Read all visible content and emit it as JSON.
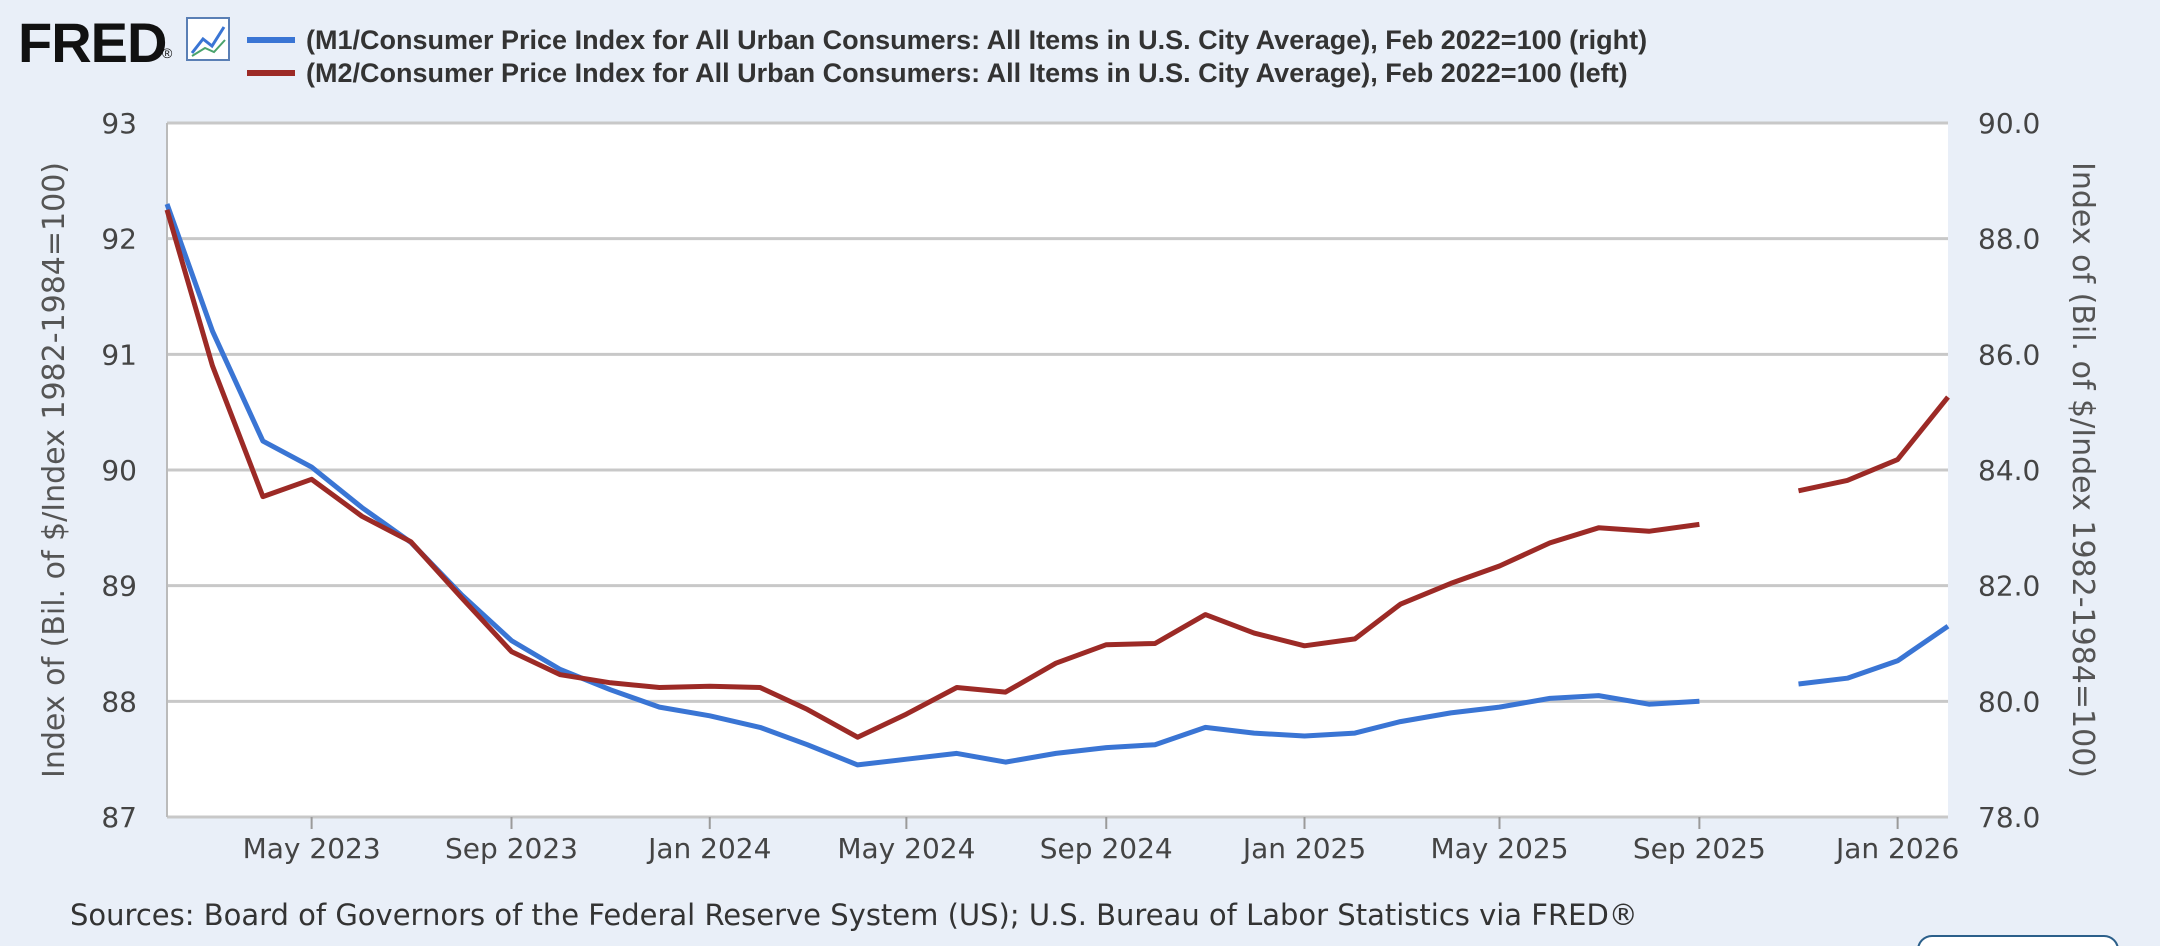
{
  "logo": {
    "text": "FRED",
    "registered": "®",
    "icon": "chart-line-icon"
  },
  "colors": {
    "m1": "#3a75d4",
    "m2": "#9c2a26",
    "grid": "#c8c8c8",
    "plot_bg": "#ffffff",
    "page_bg": "#e9eff8"
  },
  "source_text": "Sources: Board of Governors of the Federal Reserve System (US); U.S. Bureau of Labor Statistics via FRED®",
  "chart_data": {
    "type": "line",
    "x_axis": {
      "type": "date",
      "range": [
        "2023-02-01",
        "2026-02-01"
      ],
      "ticks": [
        {
          "date": "2023-05-01",
          "label": "May 2023"
        },
        {
          "date": "2023-09-01",
          "label": "Sep 2023"
        },
        {
          "date": "2024-01-01",
          "label": "Jan 2024"
        },
        {
          "date": "2024-05-01",
          "label": "May 2024"
        },
        {
          "date": "2024-09-01",
          "label": "Sep 2024"
        },
        {
          "date": "2025-01-01",
          "label": "Jan 2025"
        },
        {
          "date": "2025-05-01",
          "label": "May 2025"
        },
        {
          "date": "2025-09-01",
          "label": "Sep 2025"
        },
        {
          "date": "2026-01-01",
          "label": "Jan 2026"
        }
      ]
    },
    "y_left": {
      "label": "Index of (Bil. of $/Index 1982-1984=100)",
      "range": [
        87,
        93
      ],
      "ticks": [
        "87",
        "88",
        "89",
        "90",
        "91",
        "92",
        "93"
      ]
    },
    "y_right": {
      "label": "Index of (Bil. of $/Index 1982-1984=100)",
      "range": [
        78,
        90
      ],
      "ticks": [
        "78.0",
        "80.0",
        "82.0",
        "84.0",
        "86.0",
        "88.0",
        "90.0"
      ]
    },
    "grid": true,
    "legend_position": "top-left",
    "series": [
      {
        "name": "(M1/Consumer Price Index for All Urban Consumers: All Items in U.S. City Average), Feb 2022=100 (right)",
        "axis": "right",
        "color": "#3a75d4",
        "points": [
          [
            "2023-02-01",
            88.6
          ],
          [
            "2023-03-01",
            86.4
          ],
          [
            "2023-04-01",
            84.5
          ],
          [
            "2023-05-01",
            84.05
          ],
          [
            "2023-06-01",
            83.35
          ],
          [
            "2023-07-01",
            82.75
          ],
          [
            "2023-08-01",
            81.85
          ],
          [
            "2023-09-01",
            81.05
          ],
          [
            "2023-10-01",
            80.55
          ],
          [
            "2023-11-01",
            80.2
          ],
          [
            "2023-12-01",
            79.9
          ],
          [
            "2024-01-01",
            79.75
          ],
          [
            "2024-02-01",
            79.55
          ],
          [
            "2024-03-01",
            79.25
          ],
          [
            "2024-04-01",
            78.9
          ],
          [
            "2024-05-01",
            79.0
          ],
          [
            "2024-06-01",
            79.1
          ],
          [
            "2024-07-01",
            78.95
          ],
          [
            "2024-08-01",
            79.1
          ],
          [
            "2024-09-01",
            79.2
          ],
          [
            "2024-10-01",
            79.25
          ],
          [
            "2024-11-01",
            79.55
          ],
          [
            "2024-12-01",
            79.45
          ],
          [
            "2025-01-01",
            79.4
          ],
          [
            "2025-02-01",
            79.45
          ],
          [
            "2025-03-01",
            79.65
          ],
          [
            "2025-04-01",
            79.8
          ],
          [
            "2025-05-01",
            79.9
          ],
          [
            "2025-06-01",
            80.05
          ],
          [
            "2025-07-01",
            80.1
          ],
          [
            "2025-08-01",
            79.95
          ],
          [
            "2025-09-01",
            80.0
          ],
          [
            "2025-10-01",
            null
          ],
          [
            "2025-11-01",
            80.3
          ],
          [
            "2025-12-01",
            80.4
          ],
          [
            "2026-01-01",
            80.7
          ],
          [
            "2026-02-01",
            81.3
          ]
        ]
      },
      {
        "name": "(M2/Consumer Price Index for All Urban Consumers: All Items in U.S. City Average), Feb 2022=100 (left)",
        "axis": "left",
        "color": "#9c2a26",
        "points": [
          [
            "2023-02-01",
            92.25
          ],
          [
            "2023-03-01",
            90.9
          ],
          [
            "2023-04-01",
            89.77
          ],
          [
            "2023-05-01",
            89.92
          ],
          [
            "2023-06-01",
            89.6
          ],
          [
            "2023-07-01",
            89.38
          ],
          [
            "2023-08-01",
            88.9
          ],
          [
            "2023-09-01",
            88.43
          ],
          [
            "2023-10-01",
            88.23
          ],
          [
            "2023-11-01",
            88.16
          ],
          [
            "2023-12-01",
            88.12
          ],
          [
            "2024-01-01",
            88.13
          ],
          [
            "2024-02-01",
            88.12
          ],
          [
            "2024-03-01",
            87.93
          ],
          [
            "2024-04-01",
            87.69
          ],
          [
            "2024-05-01",
            87.89
          ],
          [
            "2024-06-01",
            88.12
          ],
          [
            "2024-07-01",
            88.08
          ],
          [
            "2024-08-01",
            88.33
          ],
          [
            "2024-09-01",
            88.49
          ],
          [
            "2024-10-01",
            88.5
          ],
          [
            "2024-11-01",
            88.75
          ],
          [
            "2024-12-01",
            88.59
          ],
          [
            "2025-01-01",
            88.48
          ],
          [
            "2025-02-01",
            88.54
          ],
          [
            "2025-03-01",
            88.84
          ],
          [
            "2025-04-01",
            89.02
          ],
          [
            "2025-05-01",
            89.17
          ],
          [
            "2025-06-01",
            89.37
          ],
          [
            "2025-07-01",
            89.5
          ],
          [
            "2025-08-01",
            89.47
          ],
          [
            "2025-09-01",
            89.53
          ],
          [
            "2025-10-01",
            null
          ],
          [
            "2025-11-01",
            89.82
          ],
          [
            "2025-12-01",
            89.91
          ],
          [
            "2026-01-01",
            90.09
          ],
          [
            "2026-02-01",
            90.63
          ]
        ]
      }
    ]
  }
}
